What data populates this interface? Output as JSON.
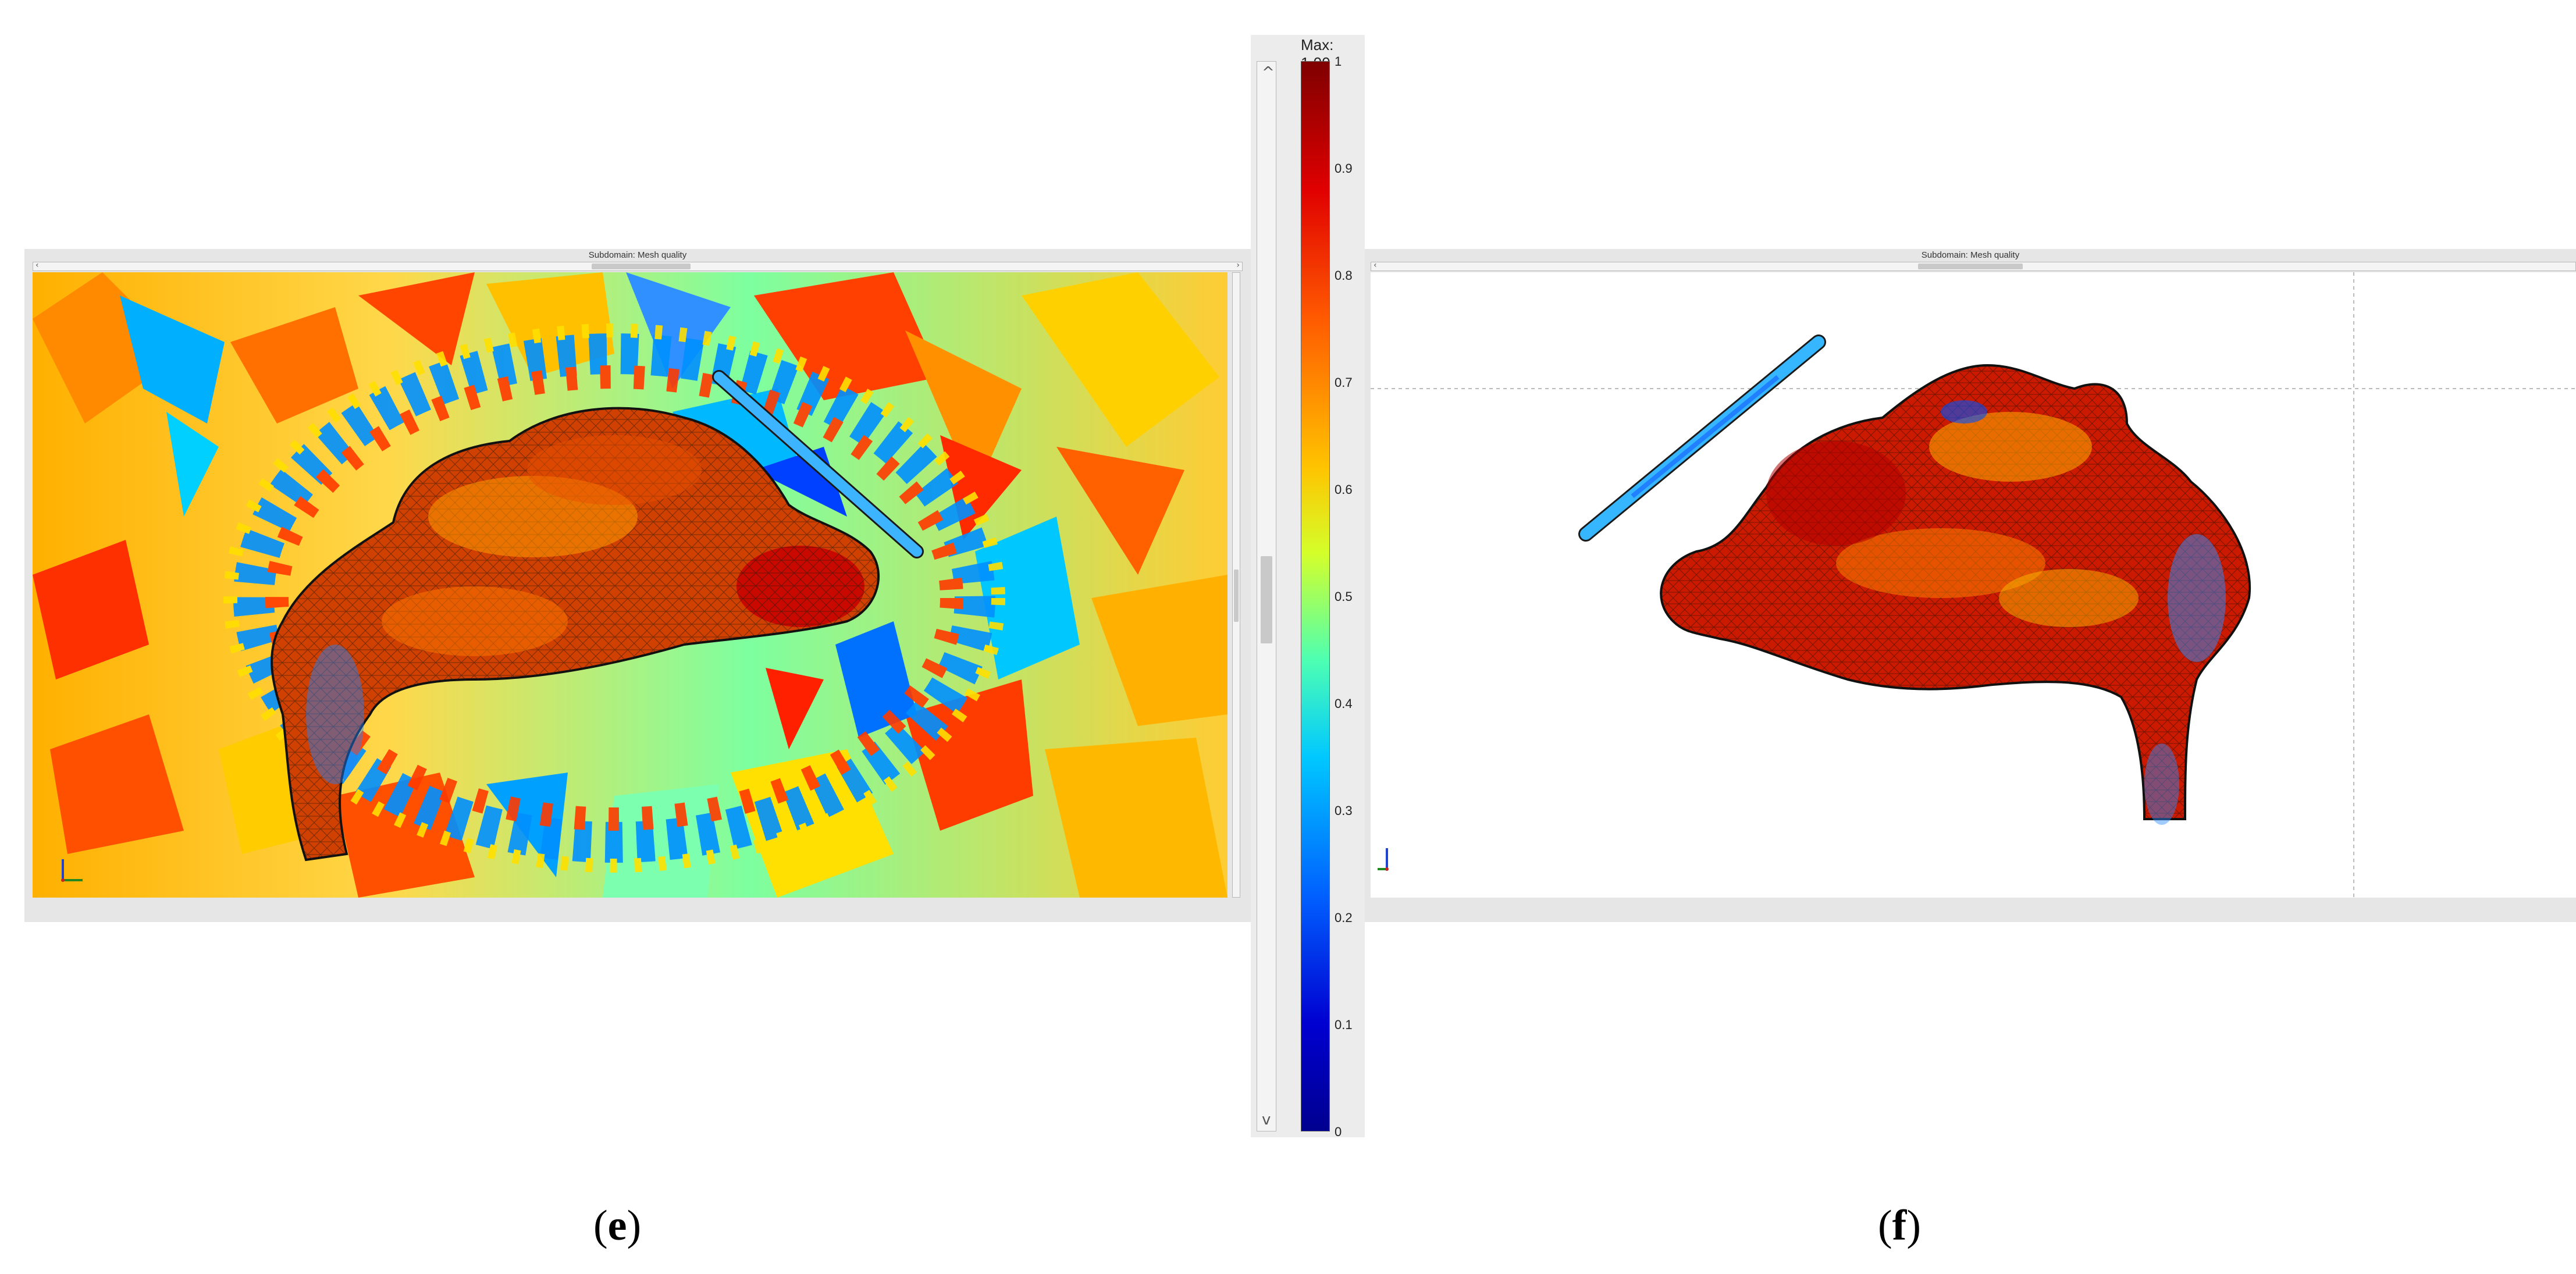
{
  "left_panel": {
    "title": "Subdomain: Mesh quality",
    "arrow_left": "‹",
    "arrow_right": "›"
  },
  "right_panel": {
    "title": "Subdomain: Mesh quality",
    "arrow_left": "‹"
  },
  "colorbar": {
    "max_label": "Max: 1.00",
    "ticks": [
      "1",
      "0.9",
      "0.8",
      "0.7",
      "0.6",
      "0.5",
      "0.4",
      "0.3",
      "0.2",
      "0.1",
      "0"
    ],
    "colors": [
      "#7f0000",
      "#e00000",
      "#ff5a00",
      "#ffc400",
      "#d4ff2a",
      "#4dffb2",
      "#00c8ff",
      "#0060ff",
      "#0000d0",
      "#00008f"
    ]
  },
  "vscroll": {
    "arrow_up": "^",
    "arrow_down": "v"
  },
  "captions": {
    "left_open": "(",
    "left_letter": "e",
    "left_close": ")",
    "right_open": "(",
    "right_letter": "f",
    "right_close": ")"
  }
}
